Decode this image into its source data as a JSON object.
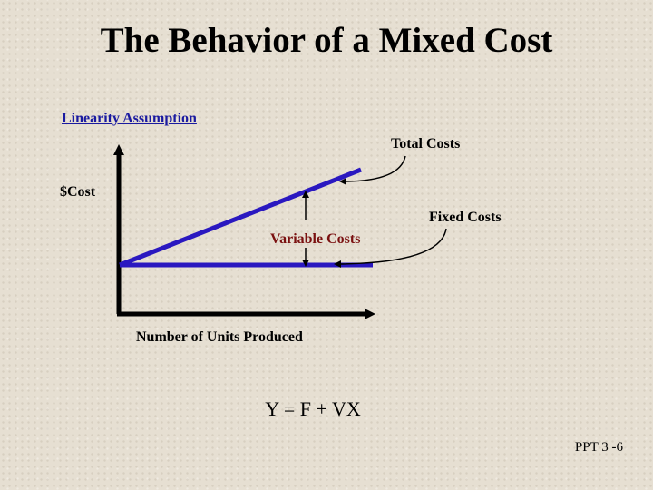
{
  "slide": {
    "title": "The Behavior of a Mixed Cost",
    "subtitle": "Linearity Assumption",
    "formula": "Y = F + VX",
    "slide_number": "PPT 3 -6"
  },
  "diagram": {
    "y_axis_label": "$Cost",
    "x_axis_label": "Number of Units Produced",
    "total_costs_label": "Total Costs",
    "fixed_costs_label": "Fixed Costs",
    "variable_costs_label": "Variable Costs",
    "line_color": "#2a18c0",
    "axis_color": "#000000"
  }
}
